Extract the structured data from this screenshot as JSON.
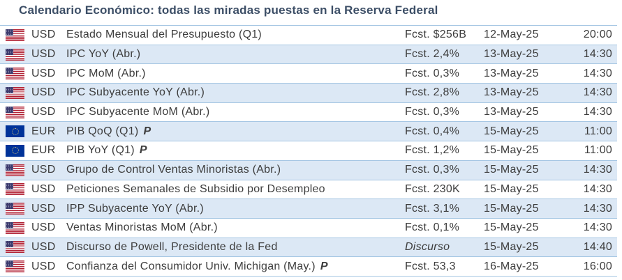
{
  "title": "Calendario Económico: todas las miradas puestas en la Reserva Federal",
  "colors": {
    "title_text": "#3c4e66",
    "row_text": "#3d3d3d",
    "row_alt_background": "#dce8f5",
    "row_border": "#a5c6e3",
    "us_flag_red": "#b22234",
    "us_flag_blue": "#3c3b6e",
    "eu_flag_blue": "#003399"
  },
  "table": {
    "rows": [
      {
        "flag": "us-flag-icon",
        "currency": "USD",
        "event": "Estado Mensual del Presupuesto (Q1)",
        "preliminary": "",
        "forecast": "Fcst. $256B",
        "forecast_italic": false,
        "date": "12-May-25",
        "time": "20:00"
      },
      {
        "flag": "us-flag-icon",
        "currency": "USD",
        "event": "IPC YoY (Abr.)",
        "preliminary": "",
        "forecast": "Fcst. 2,4%",
        "forecast_italic": false,
        "date": "13-May-25",
        "time": "14:30"
      },
      {
        "flag": "us-flag-icon",
        "currency": "USD",
        "event": "IPC MoM (Abr.)",
        "preliminary": "",
        "forecast": "Fcst. 0,3%",
        "forecast_italic": false,
        "date": "13-May-25",
        "time": "14:30"
      },
      {
        "flag": "us-flag-icon",
        "currency": "USD",
        "event": "IPC Subyacente YoY (Abr.)",
        "preliminary": "",
        "forecast": "Fcst. 2,8%",
        "forecast_italic": false,
        "date": "13-May-25",
        "time": "14:30"
      },
      {
        "flag": "us-flag-icon",
        "currency": "USD",
        "event": "IPC Subyacente MoM (Abr.)",
        "preliminary": "",
        "forecast": "Fcst. 0,3%",
        "forecast_italic": false,
        "date": "13-May-25",
        "time": "14:30"
      },
      {
        "flag": "eu-flag-icon",
        "currency": "EUR",
        "event": "PIB QoQ (Q1)",
        "preliminary": "P",
        "forecast": "Fcst. 0,4%",
        "forecast_italic": false,
        "date": "15-May-25",
        "time": "11:00"
      },
      {
        "flag": "eu-flag-icon",
        "currency": "EUR",
        "event": "PIB YoY (Q1)",
        "preliminary": "P",
        "forecast": "Fcst. 1,2%",
        "forecast_italic": false,
        "date": "15-May-25",
        "time": "11:00"
      },
      {
        "flag": "us-flag-icon",
        "currency": "USD",
        "event": "Grupo de Control Ventas Minoristas (Abr.)",
        "preliminary": "",
        "forecast": "Fcst. 0,3%",
        "forecast_italic": false,
        "date": "15-May-25",
        "time": "14:30"
      },
      {
        "flag": "us-flag-icon",
        "currency": "USD",
        "event": "Peticiones Semanales de Subsidio por Desempleo",
        "preliminary": "",
        "forecast": "Fcst. 230K",
        "forecast_italic": false,
        "date": "15-May-25",
        "time": "14:30"
      },
      {
        "flag": "us-flag-icon",
        "currency": "USD",
        "event": "IPP Subyacente YoY (Abr.)",
        "preliminary": "",
        "forecast": "Fcst. 3,1%",
        "forecast_italic": false,
        "date": "15-May-25",
        "time": "14:30"
      },
      {
        "flag": "us-flag-icon",
        "currency": "USD",
        "event": "Ventas Minoristas MoM (Abr.)",
        "preliminary": "",
        "forecast": "Fcst. 0,1%",
        "forecast_italic": false,
        "date": "15-May-25",
        "time": "14:30"
      },
      {
        "flag": "us-flag-icon",
        "currency": "USD",
        "event": "Discurso de Powell, Presidente de la Fed",
        "preliminary": "",
        "forecast": "Discurso",
        "forecast_italic": true,
        "date": "15-May-25",
        "time": "14:40"
      },
      {
        "flag": "us-flag-icon",
        "currency": "USD",
        "event": "Confianza del Consumidor Univ. Michigan (May.)",
        "preliminary": "P",
        "forecast": "Fcst. 53,3",
        "forecast_italic": false,
        "date": "16-May-25",
        "time": "16:00"
      }
    ]
  }
}
